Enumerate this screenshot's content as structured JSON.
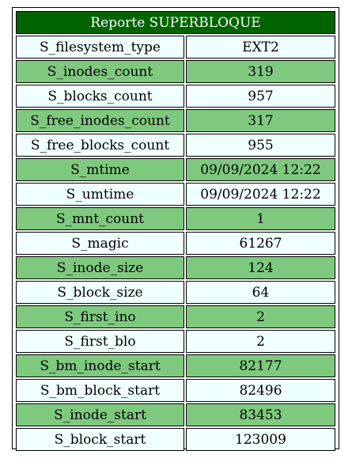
{
  "table": {
    "title": "Reporte SUPERBLOQUE",
    "rows": [
      {
        "key": "S_filesystem_type",
        "value": "EXT2"
      },
      {
        "key": "S_inodes_count",
        "value": "319"
      },
      {
        "key": "S_blocks_count",
        "value": "957"
      },
      {
        "key": "S_free_inodes_count",
        "value": "317"
      },
      {
        "key": "S_free_blocks_count",
        "value": "955"
      },
      {
        "key": "S_mtime",
        "value": "09/09/2024 12:22"
      },
      {
        "key": "S_umtime",
        "value": "09/09/2024 12:22"
      },
      {
        "key": "S_mnt_count",
        "value": "1"
      },
      {
        "key": "S_magic",
        "value": "61267"
      },
      {
        "key": "S_inode_size",
        "value": "124"
      },
      {
        "key": "S_block_size",
        "value": "64"
      },
      {
        "key": "S_first_ino",
        "value": "2"
      },
      {
        "key": "S_first_blo",
        "value": "2"
      },
      {
        "key": "S_bm_inode_start",
        "value": "82177"
      },
      {
        "key": "S_bm_block_start",
        "value": "82496"
      },
      {
        "key": "S_inode_start",
        "value": "83453"
      },
      {
        "key": "S_block_start",
        "value": "123009"
      }
    ],
    "colors": {
      "header_bg": "#006400",
      "header_text": "#ffffff",
      "row_light": "#f0ffff",
      "row_green": "#7ec97e",
      "border": "#000000"
    }
  }
}
